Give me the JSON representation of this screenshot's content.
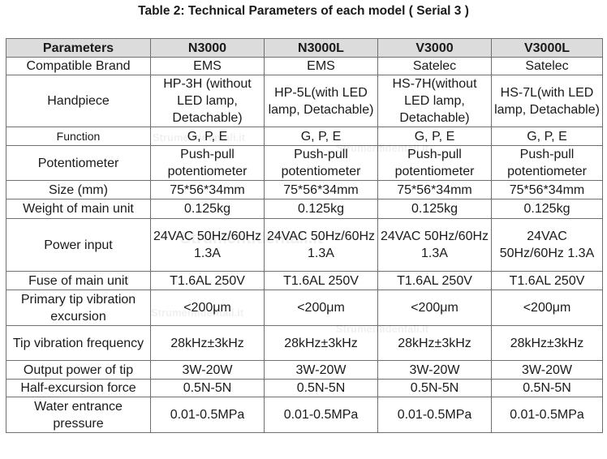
{
  "title": "Table 2: Technical Parameters of each model ( Serial  3 )",
  "headers": [
    "Parameters",
    "N3000",
    "N3000L",
    "V3000",
    "V3000L"
  ],
  "rows": [
    {
      "param": "Compatible Brand",
      "values": [
        "EMS",
        "EMS",
        "Satelec",
        "Satelec"
      ]
    },
    {
      "param": "Handpiece",
      "values": [
        "HP-3H (without LED lamp, Detachable)",
        "HP-5L(with LED lamp, Detachable)",
        "HS-7H(without LED lamp, Detachable)",
        "HS-7L(with LED lamp, Detachable)"
      ]
    },
    {
      "param": "Function",
      "values": [
        "G, P, E",
        "G, P, E",
        "G, P, E",
        "G, P, E"
      ]
    },
    {
      "param": "Potentiometer",
      "values": [
        "Push-pull potentiometer",
        "Push-pull potentiometer",
        "Push-pull potentiometer",
        "Push-pull potentiometer"
      ]
    },
    {
      "param": "Size (mm)",
      "values": [
        "75*56*34mm",
        "75*56*34mm",
        "75*56*34mm",
        "75*56*34mm"
      ]
    },
    {
      "param": "Weight of main unit",
      "values": [
        "0.125kg",
        "0.125kg",
        "0.125kg",
        "0.125kg"
      ]
    },
    {
      "param": "Power input",
      "values": [
        "24VAC 50Hz/60Hz 1.3A",
        "24VAC 50Hz/60Hz 1.3A",
        "24VAC 50Hz/60Hz 1.3A",
        "24VAC 50Hz/60Hz 1.3A"
      ]
    },
    {
      "param": "Fuse of main unit",
      "values": [
        "T1.6AL 250V",
        "T1.6AL 250V",
        "T1.6AL 250V",
        "T1.6AL 250V"
      ]
    },
    {
      "param": "Primary tip vibration excursion",
      "values": [
        "<200μm",
        "<200μm",
        "<200μm",
        "<200μm"
      ]
    },
    {
      "param": "Tip vibration frequency",
      "values": [
        "28kHz±3kHz",
        "28kHz±3kHz",
        "28kHz±3kHz",
        "28kHz±3kHz"
      ]
    },
    {
      "param": "Output power of tip",
      "values": [
        "3W-20W",
        "3W-20W",
        "3W-20W",
        "3W-20W"
      ]
    },
    {
      "param": "Half-excursion force",
      "values": [
        "0.5N-5N",
        "0.5N-5N",
        "0.5N-5N",
        "0.5N-5N"
      ]
    },
    {
      "param": "Water entrance pressure",
      "values": [
        "0.01-0.5MPa",
        "0.01-0.5MPa",
        "0.01-0.5MPa",
        "0.01-0.5MPa"
      ]
    }
  ],
  "watermarks": [
    "Strumentidentali.it",
    "Strumentidentali.it",
    "Strumentidentali.it",
    "Strumentidentali.it",
    "Strumentidentali.it"
  ],
  "colors": {
    "header_bg": "#dcdcdc",
    "border": "#6f6f6f"
  }
}
